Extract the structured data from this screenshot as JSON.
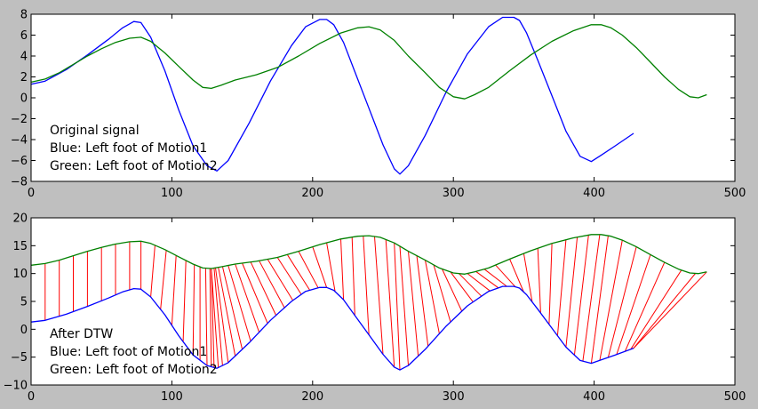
{
  "figure": {
    "background": "#bfbfbf",
    "panel_background": "#ffffff"
  },
  "chart_data": [
    {
      "type": "line",
      "xlim": [
        0,
        500
      ],
      "ylim": [
        -8,
        8
      ],
      "xticks": [
        "0",
        "100",
        "200",
        "300",
        "400",
        "500"
      ],
      "yticks": [
        "−8",
        "−6",
        "−4",
        "−2",
        "0",
        "2",
        "4",
        "6",
        "8"
      ],
      "grid": false,
      "annotation": [
        "Original signal",
        "Blue: Left foot of Motion1",
        "Green: Left foot of Motion2"
      ],
      "series": [
        {
          "color": "#0000ff",
          "x": [
            0,
            10,
            25,
            40,
            55,
            65,
            73,
            78,
            85,
            95,
            105,
            115,
            125,
            132,
            140,
            155,
            170,
            185,
            195,
            205,
            210,
            215,
            222,
            230,
            240,
            250,
            258,
            262,
            268,
            280,
            295,
            310,
            325,
            335,
            343,
            347,
            352,
            360,
            370,
            380,
            390,
            398,
            405,
            415,
            428
          ],
          "y": [
            1.3,
            1.6,
            2.7,
            4.1,
            5.6,
            6.7,
            7.3,
            7.2,
            5.8,
            2.6,
            -1.2,
            -4.6,
            -6.5,
            -7.0,
            -6.0,
            -2.4,
            1.6,
            5.0,
            6.8,
            7.5,
            7.5,
            7.0,
            5.3,
            2.5,
            -1.0,
            -4.5,
            -6.8,
            -7.3,
            -6.5,
            -3.6,
            0.6,
            4.2,
            6.8,
            7.7,
            7.7,
            7.4,
            6.2,
            3.6,
            0.2,
            -3.2,
            -5.6,
            -6.1,
            -5.5,
            -4.6,
            -3.4
          ]
        },
        {
          "color": "#008000",
          "x": [
            0,
            10,
            20,
            30,
            40,
            50,
            60,
            70,
            78,
            85,
            95,
            105,
            115,
            122,
            128,
            135,
            145,
            160,
            175,
            190,
            205,
            220,
            232,
            240,
            248,
            258,
            268,
            280,
            290,
            300,
            308,
            315,
            325,
            340,
            355,
            370,
            385,
            398,
            405,
            412,
            420,
            430,
            440,
            450,
            460,
            468,
            474,
            480
          ],
          "y": [
            1.5,
            1.8,
            2.4,
            3.2,
            4.0,
            4.7,
            5.3,
            5.7,
            5.8,
            5.4,
            4.3,
            3.0,
            1.7,
            1.0,
            0.9,
            1.2,
            1.7,
            2.2,
            2.9,
            4.0,
            5.2,
            6.2,
            6.7,
            6.8,
            6.5,
            5.5,
            4.0,
            2.4,
            1.0,
            0.1,
            -0.1,
            0.3,
            1.0,
            2.6,
            4.1,
            5.4,
            6.4,
            7.0,
            7.0,
            6.7,
            6.0,
            4.8,
            3.4,
            2.0,
            0.8,
            0.1,
            0.0,
            0.3
          ]
        }
      ]
    },
    {
      "type": "line",
      "xlim": [
        0,
        500
      ],
      "ylim": [
        -10,
        20
      ],
      "xticks": [
        "0",
        "100",
        "200",
        "300",
        "400",
        "500"
      ],
      "yticks": [
        "−10",
        "−5",
        "0",
        "5",
        "10",
        "15",
        "20"
      ],
      "grid": false,
      "annotation": [
        "After DTW",
        "Blue: Left foot of Motion1",
        "Green: Left foot of Motion2"
      ],
      "connector_color": "#ff0000",
      "series": [
        {
          "color": "#0000ff",
          "x": [
            0,
            10,
            25,
            40,
            55,
            65,
            73,
            78,
            85,
            95,
            105,
            115,
            125,
            132,
            140,
            155,
            170,
            185,
            195,
            205,
            210,
            215,
            222,
            230,
            240,
            250,
            258,
            262,
            268,
            280,
            295,
            310,
            325,
            335,
            343,
            347,
            352,
            360,
            370,
            380,
            390,
            398,
            405,
            415,
            428
          ],
          "y": [
            1.3,
            1.6,
            2.7,
            4.1,
            5.6,
            6.7,
            7.3,
            7.2,
            5.8,
            2.6,
            -1.2,
            -4.6,
            -6.5,
            -7.0,
            -6.0,
            -2.4,
            1.6,
            5.0,
            6.8,
            7.5,
            7.5,
            7.0,
            5.3,
            2.5,
            -1.0,
            -4.5,
            -6.8,
            -7.3,
            -6.5,
            -3.6,
            0.6,
            4.2,
            6.8,
            7.7,
            7.7,
            7.4,
            6.2,
            3.6,
            0.2,
            -3.2,
            -5.6,
            -6.1,
            -5.5,
            -4.6,
            -3.4
          ]
        },
        {
          "color": "#008000",
          "x": [
            0,
            10,
            20,
            30,
            40,
            50,
            60,
            70,
            78,
            85,
            95,
            105,
            115,
            122,
            128,
            135,
            145,
            160,
            175,
            190,
            205,
            220,
            232,
            240,
            248,
            258,
            268,
            280,
            290,
            300,
            308,
            315,
            325,
            340,
            355,
            370,
            385,
            398,
            405,
            412,
            420,
            430,
            440,
            450,
            460,
            468,
            474,
            480
          ],
          "y": [
            11.5,
            11.8,
            12.4,
            13.2,
            14.0,
            14.7,
            15.3,
            15.7,
            15.8,
            15.4,
            14.3,
            13.0,
            11.7,
            11.0,
            10.9,
            11.2,
            11.7,
            12.2,
            12.9,
            14.0,
            15.2,
            16.2,
            16.7,
            16.8,
            16.5,
            15.5,
            14.0,
            12.4,
            11.0,
            10.1,
            9.9,
            10.3,
            11.0,
            12.6,
            14.1,
            15.4,
            16.4,
            17.0,
            17.0,
            16.7,
            16.0,
            14.8,
            13.4,
            12.0,
            10.8,
            10.1,
            10.0,
            10.3
          ]
        }
      ],
      "alignment": [
        [
          10,
          10
        ],
        [
          20,
          20
        ],
        [
          30,
          30
        ],
        [
          40,
          40
        ],
        [
          50,
          50
        ],
        [
          60,
          60
        ],
        [
          70,
          70
        ],
        [
          78,
          78
        ],
        [
          85,
          88
        ],
        [
          92,
          96
        ],
        [
          100,
          103
        ],
        [
          108,
          110
        ],
        [
          115,
          116
        ],
        [
          120,
          120
        ],
        [
          125,
          124
        ],
        [
          128,
          127
        ],
        [
          130,
          128
        ],
        [
          133,
          128
        ],
        [
          136,
          130
        ],
        [
          140,
          131
        ],
        [
          145,
          133
        ],
        [
          150,
          136
        ],
        [
          156,
          140
        ],
        [
          162,
          145
        ],
        [
          168,
          150
        ],
        [
          174,
          156
        ],
        [
          180,
          162
        ],
        [
          186,
          168
        ],
        [
          192,
          175
        ],
        [
          198,
          182
        ],
        [
          204,
          190
        ],
        [
          210,
          200
        ],
        [
          216,
          210
        ],
        [
          222,
          220
        ],
        [
          230,
          228
        ],
        [
          240,
          236
        ],
        [
          250,
          244
        ],
        [
          258,
          252
        ],
        [
          262,
          258
        ],
        [
          268,
          262
        ],
        [
          275,
          268
        ],
        [
          282,
          274
        ],
        [
          290,
          280
        ],
        [
          298,
          286
        ],
        [
          306,
          292
        ],
        [
          314,
          298
        ],
        [
          320,
          304
        ],
        [
          326,
          310
        ],
        [
          332,
          316
        ],
        [
          338,
          322
        ],
        [
          344,
          330
        ],
        [
          350,
          340
        ],
        [
          356,
          350
        ],
        [
          362,
          360
        ],
        [
          368,
          370
        ],
        [
          374,
          380
        ],
        [
          380,
          388
        ],
        [
          386,
          396
        ],
        [
          392,
          404
        ],
        [
          398,
          410
        ],
        [
          404,
          420
        ],
        [
          410,
          430
        ],
        [
          416,
          440
        ],
        [
          422,
          450
        ],
        [
          426,
          462
        ],
        [
          428,
          472
        ],
        [
          428,
          480
        ]
      ]
    }
  ]
}
